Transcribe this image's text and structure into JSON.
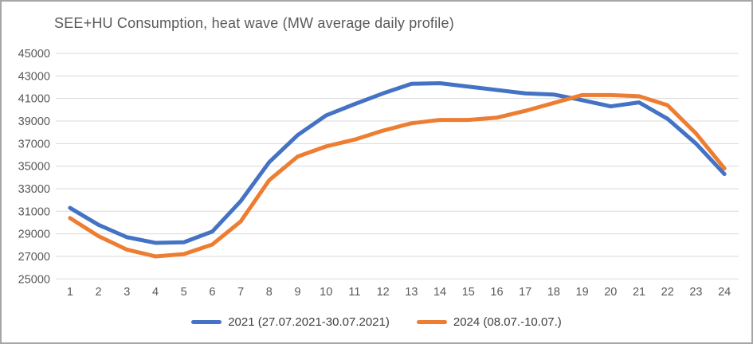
{
  "window": {
    "background_color": "#ffffff",
    "border_color": "#a6a6a6"
  },
  "chart_data": {
    "type": "line",
    "title": "SEE+HU Consumption, heat wave (MW average daily profile)",
    "xlabel": "",
    "ylabel": "",
    "categories": [
      1,
      2,
      3,
      4,
      5,
      6,
      7,
      8,
      9,
      10,
      11,
      12,
      13,
      14,
      15,
      16,
      17,
      18,
      19,
      20,
      21,
      22,
      23,
      24
    ],
    "series": [
      {
        "name": "2021 (27.07.2021-30.07.2021)",
        "color": "#4472C4",
        "values": [
          31300,
          29800,
          28700,
          28200,
          28250,
          29200,
          31900,
          35350,
          37750,
          39500,
          40500,
          41450,
          42300,
          42350,
          42050,
          41750,
          41450,
          41350,
          40850,
          40300,
          40650,
          39200,
          37000,
          34300
        ]
      },
      {
        "name": "2024 (08.07.-10.07.)",
        "color": "#ED7D31",
        "values": [
          30400,
          28800,
          27600,
          27000,
          27200,
          28050,
          30100,
          33750,
          35850,
          36750,
          37350,
          38150,
          38800,
          39100,
          39100,
          39300,
          39900,
          40600,
          41300,
          41300,
          41200,
          40400,
          37900,
          34800
        ]
      }
    ],
    "ylim": [
      25000,
      45000
    ],
    "y_ticks": [
      45000,
      43000,
      41000,
      39000,
      37000,
      35000,
      33000,
      31000,
      29000,
      27000,
      25000
    ],
    "grid": true,
    "legend_position": "bottom",
    "gridline_color": "#d9d9d9",
    "tick_label_color": "#595959",
    "title_color": "#595959",
    "legend_text_color": "#404040"
  }
}
